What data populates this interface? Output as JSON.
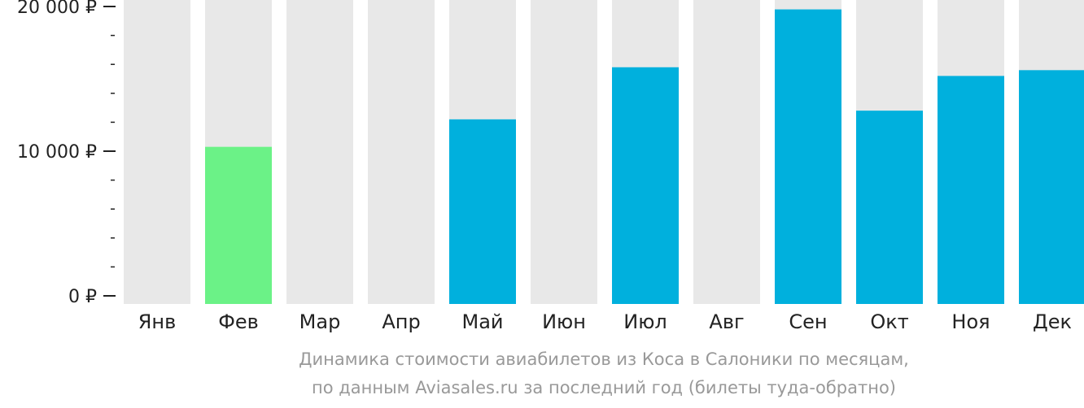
{
  "chart_data": {
    "type": "bar",
    "categories": [
      "Янв",
      "Фев",
      "Мар",
      "Апр",
      "Май",
      "Июн",
      "Июл",
      "Авг",
      "Сен",
      "Окт",
      "Ноя",
      "Дек"
    ],
    "values": [
      null,
      10300,
      null,
      null,
      12200,
      null,
      15800,
      null,
      19800,
      12800,
      15200,
      15600
    ],
    "highlight_index": 1,
    "ylim": [
      0,
      20000
    ],
    "yticks": [
      {
        "value": 0,
        "label": "0 ₽"
      },
      {
        "value": 10000,
        "label": "10 000 ₽"
      },
      {
        "value": 20000,
        "label": "20 000 ₽"
      }
    ],
    "minor_tick_step": 2000,
    "colors": {
      "bar": "#00b0dd",
      "highlight": "#6bf287",
      "background_column": "#e8e8e8",
      "axis": "#222222"
    }
  },
  "caption": {
    "line1": "Динамика стоимости авиабилетов из Коса в Салоники по месяцам,",
    "line2": "по данным Aviasales.ru за последний год (билеты туда-обратно)"
  }
}
